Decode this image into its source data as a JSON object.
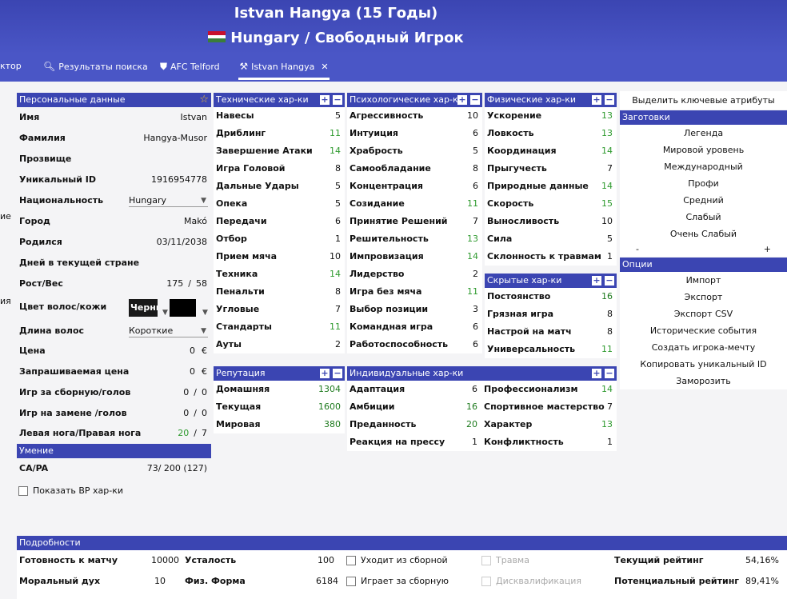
{
  "header": {
    "title": "Istvan Hangya (15 Годы)",
    "subtitle": "Hungary / Свободный Игрок"
  },
  "tabs": [
    {
      "label": "ктор"
    },
    {
      "label": "Результаты поиска",
      "icon": "search-icon"
    },
    {
      "label": "AFC Telford",
      "icon": "shield-icon"
    },
    {
      "label": "Istvan Hangya",
      "icon": "player-icon",
      "close": "✕"
    }
  ],
  "left_clip": [
    "ие",
    "ия"
  ],
  "personal": {
    "title": "Персональные данные",
    "rows": [
      {
        "k": "Имя",
        "v": "Istvan"
      },
      {
        "k": "Фамилия",
        "v": "Hangya-Musor"
      },
      {
        "k": "Прозвище",
        "v": ""
      },
      {
        "k": "Уникальный ID",
        "v": "1916954778"
      },
      {
        "k": "Национальность",
        "v": "Hungary"
      },
      {
        "k": "Город",
        "v": "Makó"
      },
      {
        "k": "Родился",
        "v": "03/11/2038"
      },
      {
        "k": "Дней в текущей стране",
        "v": ""
      },
      {
        "k": "Рост/Вес",
        "v1": "175",
        "sep": "/",
        "v2": "58"
      },
      {
        "k": "Цвет волос/кожи",
        "v1": "Черны",
        "v2": ""
      },
      {
        "k": "Длина волос",
        "v": "Короткие"
      },
      {
        "k": "Цена",
        "v": "0",
        "unit": "€"
      },
      {
        "k": "Запрашиваемая цена",
        "v": "0",
        "unit": "€"
      },
      {
        "k": "Игр за сборную/голов",
        "v1": "0",
        "sep": "/",
        "v2": "0"
      },
      {
        "k": "Игр на замене /голов",
        "v1": "0",
        "sep": "/",
        "v2": "0"
      },
      {
        "k": "Левая нога/Правая нога",
        "v1": "20",
        "sep": "/",
        "v2": "7"
      }
    ]
  },
  "ability": {
    "title": "Умение",
    "label": "CA/PA",
    "ca": "73",
    "sep": "/",
    "pa": "200 (127)"
  },
  "show_bp": "Показать BP хар-ки",
  "technical": {
    "title": "Технические хар-ки",
    "rows": [
      {
        "k": "Навесы",
        "v": "5"
      },
      {
        "k": "Дриблинг",
        "v": "11"
      },
      {
        "k": "Завершение Атаки",
        "v": "14"
      },
      {
        "k": "Игра Головой",
        "v": "8"
      },
      {
        "k": "Дальные Удары",
        "v": "5"
      },
      {
        "k": "Опека",
        "v": "5"
      },
      {
        "k": "Передачи",
        "v": "6"
      },
      {
        "k": "Отбор",
        "v": "1"
      },
      {
        "k": "Прием мяча",
        "v": "10"
      },
      {
        "k": "Техника",
        "v": "14"
      },
      {
        "k": "Пенальти",
        "v": "8"
      },
      {
        "k": "Угловые",
        "v": "7"
      },
      {
        "k": "Стандарты",
        "v": "11"
      },
      {
        "k": "Ауты",
        "v": "2"
      }
    ]
  },
  "mental": {
    "title": "Психологические хар-ки",
    "rows": [
      {
        "k": "Агрессивность",
        "v": "10"
      },
      {
        "k": "Интуиция",
        "v": "6"
      },
      {
        "k": "Храбрость",
        "v": "5"
      },
      {
        "k": "Самообладание",
        "v": "8"
      },
      {
        "k": "Концентрация",
        "v": "6"
      },
      {
        "k": "Созидание",
        "v": "11"
      },
      {
        "k": "Принятие Решений",
        "v": "7"
      },
      {
        "k": "Решительность",
        "v": "13"
      },
      {
        "k": "Импровизация",
        "v": "14"
      },
      {
        "k": "Лидерство",
        "v": "2"
      },
      {
        "k": "Игра без мяча",
        "v": "11"
      },
      {
        "k": "Выбор позиции",
        "v": "3"
      },
      {
        "k": "Командная игра",
        "v": "6"
      },
      {
        "k": "Работоспособность",
        "v": "6"
      }
    ]
  },
  "physical": {
    "title": "Физические хар-ки",
    "rows": [
      {
        "k": "Ускорение",
        "v": "13"
      },
      {
        "k": "Ловкость",
        "v": "13"
      },
      {
        "k": "Координация",
        "v": "14"
      },
      {
        "k": "Прыгучесть",
        "v": "7"
      },
      {
        "k": "Природные данные",
        "v": "14"
      },
      {
        "k": "Скорость",
        "v": "15"
      },
      {
        "k": "Выносливость",
        "v": "10"
      },
      {
        "k": "Сила",
        "v": "5"
      },
      {
        "k": "Склонность к травмам",
        "v": "1"
      }
    ]
  },
  "hidden": {
    "title": "Скрытые хар-ки",
    "rows": [
      {
        "k": "Постоянство",
        "v": "16"
      },
      {
        "k": "Грязная игра",
        "v": "8"
      },
      {
        "k": "Настрой на матч",
        "v": "8"
      },
      {
        "k": "Универсальность",
        "v": "11"
      }
    ]
  },
  "reputation": {
    "title": "Репутация",
    "rows": [
      {
        "k": "Домашняя",
        "v": "1304"
      },
      {
        "k": "Текущая",
        "v": "1600"
      },
      {
        "k": "Мировая",
        "v": "380"
      }
    ]
  },
  "personality": {
    "title": "Индивидуальные хар-ки",
    "left": [
      {
        "k": "Адаптация",
        "v": "6"
      },
      {
        "k": "Амбиции",
        "v": "16"
      },
      {
        "k": "Преданность",
        "v": "20"
      },
      {
        "k": "Реакция на прессу",
        "v": "1"
      }
    ],
    "right": [
      {
        "k": "Профессионализм",
        "v": "14"
      },
      {
        "k": "Спортивное мастерство",
        "v": "7"
      },
      {
        "k": "Характер",
        "v": "13"
      },
      {
        "k": "Конфликтность",
        "v": "1"
      }
    ]
  },
  "right_panel": {
    "highlight": "Выделить ключевые атрибуты",
    "presets_title": "Заготовки",
    "presets": [
      "Легенда",
      "Мировой уровень",
      "Международный",
      "Профи",
      "Средний",
      "Слабый",
      "Очень Слабый"
    ],
    "minus": "-",
    "plus": "+",
    "options_title": "Опции",
    "options": [
      "Импорт",
      "Экспорт",
      "Экспорт CSV",
      "Исторические события",
      "Создать игрока-мечту",
      "Копировать уникальный ID",
      "Заморозить"
    ]
  },
  "details": {
    "title": "Подробности",
    "match_ready": {
      "k": "Готовность к матчу",
      "v": "10000"
    },
    "morale": {
      "k": "Моральный дух",
      "v": "10"
    },
    "fatigue": {
      "k": "Усталость",
      "v": "100"
    },
    "fitness": {
      "k": "Физ. Форма",
      "v": "6184"
    },
    "cb1": "Уходит из сборной",
    "cb2": "Играет за сборную",
    "cb3": "Травма",
    "cb4": "Дисквалификация",
    "cur_rating": {
      "k": "Текущий рейтинг",
      "v": "54,16%"
    },
    "pot_rating": {
      "k": "Потенциальный рейтинг",
      "v": "89,41%"
    }
  },
  "colors": {
    "header": "#3b45b2",
    "green": "#2e9a2e"
  }
}
